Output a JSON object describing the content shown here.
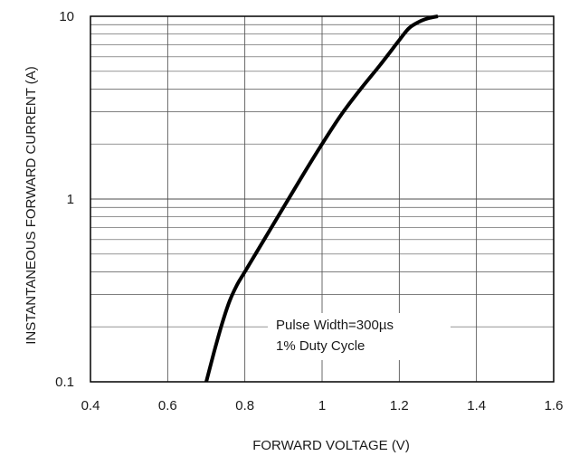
{
  "chart_data": {
    "type": "line",
    "xlabel": "FORWARD VOLTAGE (V)",
    "ylabel": "INSTANTANEOUS FORWARD CURRENT (A)",
    "xlim": [
      0.4,
      1.6
    ],
    "ylim": [
      0.1,
      10
    ],
    "yscale": "log",
    "grid": true,
    "x_ticks": [
      "0.4",
      "0.6",
      "0.8",
      "1",
      "1.2",
      "1.4",
      "1.6"
    ],
    "y_ticks": [
      "0.1",
      "1",
      "10"
    ],
    "annotations": [
      "Pulse Width=300µs",
      "1% Duty Cycle"
    ],
    "series": [
      {
        "x": [
          0.7,
          0.72,
          0.74,
          0.76,
          0.78,
          0.8,
          0.85,
          0.9,
          0.95,
          1.0,
          1.05,
          1.1,
          1.15,
          1.2,
          1.225,
          1.25,
          1.275,
          1.3
        ],
        "y": [
          0.1,
          0.145,
          0.205,
          0.275,
          0.34,
          0.4,
          0.6,
          0.9,
          1.35,
          2.0,
          2.9,
          4.0,
          5.4,
          7.4,
          8.6,
          9.3,
          9.75,
          10.0
        ]
      }
    ]
  }
}
